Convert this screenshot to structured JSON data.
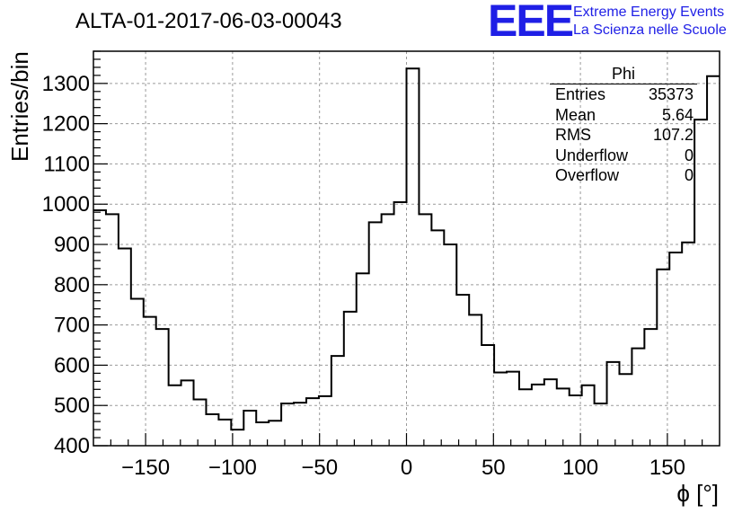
{
  "title": "ALTA-01-2017-06-03-00043",
  "logo": {
    "letters": "EEE",
    "line1": "Extreme Energy Events",
    "line2": "La Scienza nelle Scuole"
  },
  "stats_box": {
    "name": "Phi",
    "rows": [
      {
        "label": "Entries",
        "value": "35373"
      },
      {
        "label": "Mean",
        "value": "5.64"
      },
      {
        "label": "RMS",
        "value": "107.2"
      },
      {
        "label": "Underflow",
        "value": "0"
      },
      {
        "label": "Overflow",
        "value": "0"
      }
    ]
  },
  "chart_data": {
    "type": "histogram",
    "title": "ALTA-01-2017-06-03-00043",
    "xlabel": "ϕ [°]",
    "ylabel": "Entries/bin",
    "xlim": [
      -180,
      180
    ],
    "ylim": [
      400,
      1380
    ],
    "xticks": [
      -150,
      -100,
      -50,
      0,
      50,
      100,
      150
    ],
    "yticks": [
      400,
      500,
      600,
      700,
      800,
      900,
      1000,
      1100,
      1200,
      1300
    ],
    "grid": true,
    "bin_width": 7.2,
    "bin_edges_start": -180,
    "values": [
      985,
      975,
      890,
      765,
      720,
      690,
      550,
      562,
      515,
      478,
      465,
      440,
      487,
      458,
      462,
      505,
      507,
      518,
      523,
      623,
      733,
      828,
      955,
      975,
      1005,
      1337,
      975,
      935,
      900,
      775,
      725,
      650,
      582,
      584,
      540,
      552,
      565,
      542,
      525,
      550,
      505,
      608,
      578,
      642,
      690,
      838,
      880,
      905,
      1210,
      1318
    ]
  }
}
